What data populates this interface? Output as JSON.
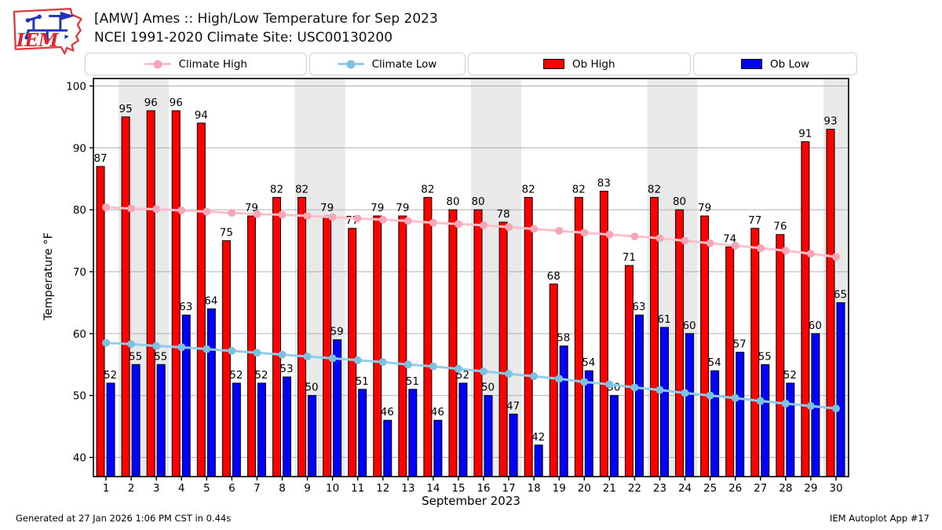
{
  "header": {
    "title_line1": "[AMW] Ames :: High/Low Temperature for Sep 2023",
    "title_line2": "NCEI 1991-2020 Climate Site: USC00130200",
    "logo_text": "IEM"
  },
  "legend": {
    "items": [
      {
        "label": "Climate High",
        "type": "line",
        "color": "#ffc0cb",
        "marker_color": "#f7a6b8"
      },
      {
        "label": "Climate Low",
        "type": "line",
        "color": "#8fcde9",
        "marker_color": "#7bc1e0"
      },
      {
        "label": "Ob High",
        "type": "patch",
        "color": "#ff0000"
      },
      {
        "label": "Ob Low",
        "type": "patch",
        "color": "#0000ff"
      }
    ]
  },
  "footer": {
    "left": "Generated at 27 Jan 2026 1:06 PM CST in 0.44s",
    "right": "IEM Autoplot App #17"
  },
  "chart_data": {
    "type": "bar",
    "title": "[AMW] Ames :: High/Low Temperature for Sep 2023",
    "subtitle": "NCEI 1991-2020 Climate Site: USC00130200",
    "xlabel": "September 2023",
    "ylabel": "Temperature °F",
    "categories": [
      1,
      2,
      3,
      4,
      5,
      6,
      7,
      8,
      9,
      10,
      11,
      12,
      13,
      14,
      15,
      16,
      17,
      18,
      19,
      20,
      21,
      22,
      23,
      24,
      25,
      26,
      27,
      28,
      29,
      30
    ],
    "series": [
      {
        "name": "Ob High",
        "type": "bar",
        "color": "#ff0000",
        "values": [
          87,
          95,
          96,
          96,
          94,
          75,
          79,
          82,
          82,
          79,
          77,
          79,
          79,
          82,
          80,
          80,
          78,
          82,
          68,
          82,
          83,
          71,
          82,
          80,
          79,
          74,
          77,
          76,
          91,
          93
        ]
      },
      {
        "name": "Ob Low",
        "type": "bar",
        "color": "#0000ff",
        "values": [
          52,
          55,
          55,
          63,
          64,
          52,
          52,
          53,
          50,
          59,
          51,
          46,
          51,
          46,
          52,
          50,
          47,
          42,
          58,
          54,
          50,
          63,
          61,
          60,
          54,
          57,
          55,
          52,
          60,
          65
        ]
      },
      {
        "name": "Climate High",
        "type": "line",
        "color": "#ffc0cb",
        "marker_color": "#f7a6b8",
        "values": [
          80.4,
          80.2,
          80.1,
          79.9,
          79.7,
          79.5,
          79.3,
          79.2,
          79.0,
          78.8,
          78.6,
          78.4,
          78.2,
          77.9,
          77.7,
          77.5,
          77.2,
          76.9,
          76.6,
          76.3,
          76.0,
          75.7,
          75.4,
          75.0,
          74.6,
          74.2,
          73.8,
          73.4,
          72.9,
          72.4
        ]
      },
      {
        "name": "Climate Low",
        "type": "line",
        "color": "#8fcde9",
        "marker_color": "#7bc1e0",
        "values": [
          58.5,
          58.3,
          58.0,
          57.8,
          57.5,
          57.2,
          56.9,
          56.6,
          56.3,
          56.0,
          55.7,
          55.4,
          55.0,
          54.7,
          54.3,
          53.9,
          53.5,
          53.1,
          52.7,
          52.2,
          51.8,
          51.3,
          50.9,
          50.4,
          50.0,
          49.6,
          49.1,
          48.7,
          48.3,
          47.9
        ]
      }
    ],
    "yticks": [
      40,
      50,
      60,
      70,
      80,
      90,
      100
    ],
    "ylim": [
      36.9,
      101.2
    ],
    "grid": "horizontal",
    "grid_color": "#b0b0b0",
    "legend_position": "top",
    "shaded_day_ranges": [
      [
        1.5,
        3.5
      ],
      [
        8.5,
        10.5
      ],
      [
        15.5,
        17.5
      ],
      [
        22.5,
        24.5
      ],
      [
        29.5,
        30.5
      ]
    ],
    "shade_color": "#e9e9e9",
    "frame_color": "#000000"
  }
}
